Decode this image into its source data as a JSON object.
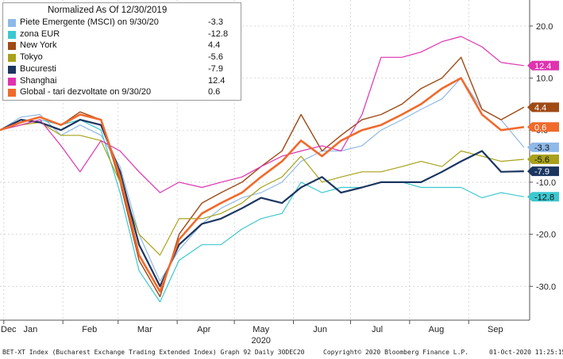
{
  "chart_data": {
    "type": "line",
    "title": "Normalized As Of 12/30/2019",
    "y_axis_side": "right",
    "ylim": [
      -36.5,
      25
    ],
    "y_ticks": [
      20,
      10,
      0,
      -10,
      -20,
      -30
    ],
    "y_tick_labels": [
      "20.0",
      "10.0",
      "0.0",
      "-10.0",
      "-20.0",
      "-30.0"
    ],
    "x_ticks": [
      {
        "label": "Dec",
        "date": "2019-12-30"
      },
      {
        "label": "Jan",
        "date": "2020-01-15"
      },
      {
        "label": "Feb",
        "date": "2020-02-15"
      },
      {
        "label": "Mar",
        "date": "2020-03-15"
      },
      {
        "label": "Apr",
        "date": "2020-04-15"
      },
      {
        "label": "May",
        "date": "2020-05-15"
      },
      {
        "label": "Jun",
        "date": "2020-06-15"
      },
      {
        "label": "Jul",
        "date": "2020-07-15"
      },
      {
        "label": "Aug",
        "date": "2020-08-15"
      },
      {
        "label": "Sep",
        "date": "2020-09-15"
      }
    ],
    "year_label": "2020",
    "grid": true,
    "legend_position": "top-left",
    "x": [
      "2019-12-30",
      "2020-01-10",
      "2020-01-20",
      "2020-01-31",
      "2020-02-10",
      "2020-02-21",
      "2020-03-02",
      "2020-03-12",
      "2020-03-23",
      "2020-04-02",
      "2020-04-14",
      "2020-04-24",
      "2020-05-05",
      "2020-05-15",
      "2020-05-26",
      "2020-06-05",
      "2020-06-16",
      "2020-06-26",
      "2020-07-07",
      "2020-07-17",
      "2020-07-28",
      "2020-08-07",
      "2020-08-18",
      "2020-08-28",
      "2020-09-08",
      "2020-09-18",
      "2020-09-30"
    ],
    "series": [
      {
        "name": "Piete Emergente (MSCI) on 9/30/20",
        "last": "-3.3",
        "color": "#8fb9e8",
        "width": 1.2,
        "values": [
          0,
          2.5,
          3,
          -1,
          1,
          -1,
          -7,
          -20,
          -29,
          -23,
          -18,
          -15,
          -13,
          -12,
          -10,
          -6,
          -4,
          -4,
          -3,
          0,
          2,
          4,
          6,
          10,
          4,
          2,
          -3.3
        ]
      },
      {
        "name": "zona EUR",
        "last": "-12.8",
        "color": "#3cc8d0",
        "width": 1.2,
        "values": [
          0,
          1,
          2,
          1,
          2,
          0,
          -12,
          -27,
          -33,
          -25,
          -22,
          -22,
          -19,
          -17,
          -16,
          -10,
          -12,
          -11,
          -11,
          -10,
          -10,
          -11,
          -11,
          -11,
          -13,
          -12,
          -12.8
        ]
      },
      {
        "name": "New York",
        "last": "4.4",
        "color": "#a04a15",
        "width": 1.4,
        "values": [
          0,
          1.5,
          2.5,
          1,
          3.5,
          2,
          -10,
          -25,
          -32,
          -20,
          -14,
          -12,
          -10,
          -7,
          -4,
          3,
          -4,
          -1,
          2,
          3,
          5,
          8,
          10,
          14,
          4,
          2,
          4.4
        ]
      },
      {
        "name": "Tokyo",
        "last": "-5.6",
        "color": "#a8a21a",
        "width": 1.2,
        "values": [
          0,
          1,
          1.5,
          -1,
          -1,
          -2,
          -10,
          -20,
          -24,
          -17,
          -17,
          -16,
          -14,
          -11,
          -9,
          -5,
          -10,
          -9,
          -8,
          -8,
          -7,
          -6,
          -7,
          -4,
          -5,
          -6,
          -5.6
        ]
      },
      {
        "name": "Bucuresti",
        "last": "-7.9",
        "color": "#1a3560",
        "width": 2.2,
        "values": [
          0,
          2,
          1.5,
          0,
          2,
          1,
          -8,
          -22,
          -30,
          -22,
          -18,
          -17,
          -15,
          -13,
          -14,
          -11,
          -9,
          -12,
          -11,
          -10,
          -10,
          -10,
          -8,
          -6,
          -4,
          -8,
          -7.9
        ]
      },
      {
        "name": "Shanghai",
        "last": "12.4",
        "color": "#e032b0",
        "width": 1.2,
        "values": [
          0,
          1,
          2,
          -3,
          -8,
          -2,
          -4,
          -8,
          -12,
          -10,
          -11,
          -10,
          -9,
          -7,
          -5,
          -4,
          -3,
          -4,
          3,
          14,
          14,
          15,
          17,
          18,
          16,
          13,
          12.4
        ]
      },
      {
        "name": "Global - tari dezvoltate on 9/30/20",
        "last": "0.6",
        "color": "#f06a2c",
        "width": 2.6,
        "values": [
          0,
          1.5,
          2.5,
          1,
          3,
          2,
          -9,
          -24,
          -31,
          -21,
          -16,
          -14,
          -12,
          -9,
          -6,
          -2,
          -5,
          -2,
          0,
          1,
          3,
          5,
          8,
          10,
          3,
          0,
          0.6
        ]
      }
    ]
  },
  "footer": {
    "left": "BET-XT Index (Bucharest Exchange Trading Extended Index) Graph 92  Daily 30DEC20",
    "middle": "Copyright© 2020 Bloomberg Finance L.P.",
    "right": "01-Oct-2020 11:25:15"
  }
}
